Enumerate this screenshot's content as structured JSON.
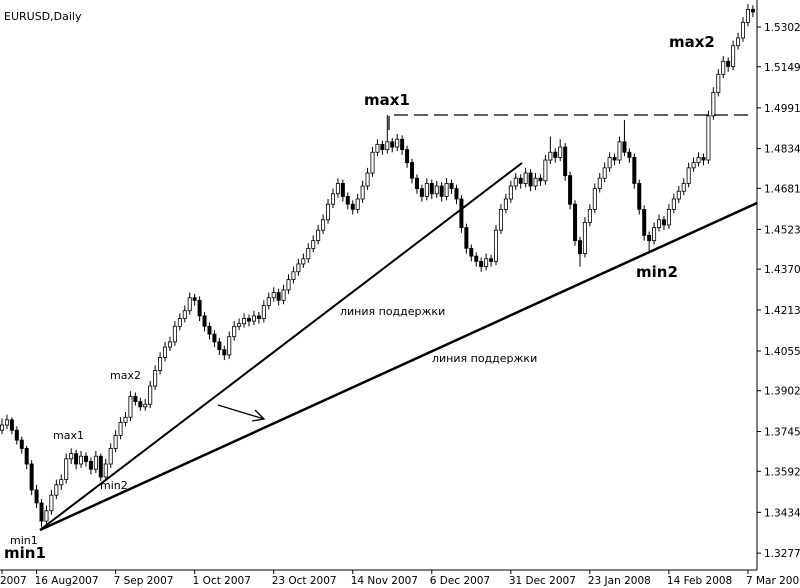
{
  "chart_data": {
    "type": "candlestick",
    "title": "EURUSD,Daily",
    "categories": [
      "2007",
      null,
      null,
      null,
      null,
      null,
      null,
      "16 Aug2007",
      null,
      null,
      null,
      null,
      null,
      null,
      null,
      null,
      null,
      null,
      null,
      null,
      null,
      null,
      null,
      "7 Sep 2007",
      null,
      null,
      null,
      null,
      null,
      null,
      null,
      null,
      null,
      null,
      null,
      null,
      null,
      null,
      null,
      "1 Oct 2007",
      null,
      null,
      null,
      null,
      null,
      null,
      null,
      null,
      null,
      null,
      null,
      null,
      null,
      null,
      null,
      "23 Oct 2007",
      null,
      null,
      null,
      null,
      null,
      null,
      null,
      null,
      null,
      null,
      null,
      null,
      null,
      null,
      null,
      "14 Nov 2007",
      null,
      null,
      null,
      null,
      null,
      null,
      null,
      null,
      null,
      null,
      null,
      null,
      null,
      null,
      null,
      "6 Dec 2007",
      null,
      null,
      null,
      null,
      null,
      null,
      null,
      null,
      null,
      null,
      null,
      null,
      null,
      null,
      null,
      "31 Dec 2007",
      null,
      null,
      null,
      null,
      null,
      null,
      null,
      null,
      null,
      null,
      null,
      null,
      null,
      null,
      null,
      "23 Jan 2008",
      null,
      null,
      null,
      null,
      null,
      null,
      null,
      null,
      null,
      null,
      null,
      null,
      null,
      null,
      null,
      "14 Feb 2008",
      null,
      null,
      null,
      null,
      null,
      null,
      null,
      null,
      null,
      null,
      null,
      null,
      null,
      null,
      null,
      "7 Mar 200",
      null
    ],
    "candles": [
      [
        1.375,
        1.3795,
        1.3735,
        1.377
      ],
      [
        1.377,
        1.381,
        1.3755,
        1.379
      ],
      [
        1.379,
        1.38,
        1.3735,
        1.375
      ],
      [
        1.375,
        1.3765,
        1.3695,
        1.3712
      ],
      [
        1.3712,
        1.3725,
        1.366,
        1.368
      ],
      [
        1.368,
        1.369,
        1.36,
        1.362
      ],
      [
        1.362,
        1.3635,
        1.35,
        1.352
      ],
      [
        1.352,
        1.354,
        1.345,
        1.347
      ],
      [
        1.347,
        1.3485,
        1.3377,
        1.34
      ],
      [
        1.34,
        1.346,
        1.3385,
        1.344
      ],
      [
        1.344,
        1.352,
        1.3425,
        1.35
      ],
      [
        1.35,
        1.356,
        1.3485,
        1.354
      ],
      [
        1.354,
        1.358,
        1.352,
        1.356
      ],
      [
        1.356,
        1.366,
        1.3545,
        1.364
      ],
      [
        1.364,
        1.368,
        1.362,
        1.366
      ],
      [
        1.366,
        1.3675,
        1.36,
        1.362
      ],
      [
        1.362,
        1.367,
        1.3605,
        1.365
      ],
      [
        1.365,
        1.3665,
        1.361,
        1.363
      ],
      [
        1.363,
        1.3645,
        1.358,
        1.36
      ],
      [
        1.36,
        1.367,
        1.3585,
        1.365
      ],
      [
        1.365,
        1.366,
        1.3555,
        1.357
      ],
      [
        1.357,
        1.364,
        1.3555,
        1.362
      ],
      [
        1.362,
        1.37,
        1.3605,
        1.368
      ],
      [
        1.368,
        1.375,
        1.3665,
        1.373
      ],
      [
        1.373,
        1.38,
        1.3715,
        1.378
      ],
      [
        1.378,
        1.382,
        1.3765,
        1.38
      ],
      [
        1.38,
        1.39,
        1.3785,
        1.388
      ],
      [
        1.388,
        1.3895,
        1.3845,
        1.386
      ],
      [
        1.386,
        1.3875,
        1.3825,
        1.384
      ],
      [
        1.384,
        1.387,
        1.3825,
        1.385
      ],
      [
        1.385,
        1.394,
        1.3835,
        1.392
      ],
      [
        1.392,
        1.4,
        1.3905,
        1.398
      ],
      [
        1.398,
        1.405,
        1.3965,
        1.403
      ],
      [
        1.403,
        1.409,
        1.4015,
        1.407
      ],
      [
        1.407,
        1.411,
        1.4055,
        1.409
      ],
      [
        1.409,
        1.417,
        1.4075,
        1.415
      ],
      [
        1.415,
        1.42,
        1.4135,
        1.418
      ],
      [
        1.418,
        1.423,
        1.4165,
        1.421
      ],
      [
        1.421,
        1.428,
        1.4195,
        1.426
      ],
      [
        1.426,
        1.4275,
        1.423,
        1.425
      ],
      [
        1.425,
        1.4265,
        1.417,
        1.419
      ],
      [
        1.419,
        1.4205,
        1.413,
        1.415
      ],
      [
        1.415,
        1.4165,
        1.41,
        1.412
      ],
      [
        1.412,
        1.4135,
        1.407,
        1.409
      ],
      [
        1.409,
        1.4105,
        1.404,
        1.406
      ],
      [
        1.406,
        1.4075,
        1.402,
        1.404
      ],
      [
        1.404,
        1.413,
        1.4025,
        1.411
      ],
      [
        1.411,
        1.417,
        1.4095,
        1.415
      ],
      [
        1.415,
        1.418,
        1.4135,
        1.416
      ],
      [
        1.416,
        1.42,
        1.4145,
        1.418
      ],
      [
        1.418,
        1.4195,
        1.415,
        1.417
      ],
      [
        1.417,
        1.421,
        1.4155,
        1.419
      ],
      [
        1.419,
        1.4205,
        1.416,
        1.418
      ],
      [
        1.418,
        1.425,
        1.4165,
        1.423
      ],
      [
        1.423,
        1.428,
        1.4215,
        1.426
      ],
      [
        1.426,
        1.43,
        1.4245,
        1.428
      ],
      [
        1.428,
        1.4295,
        1.423,
        1.425
      ],
      [
        1.425,
        1.431,
        1.4235,
        1.429
      ],
      [
        1.429,
        1.435,
        1.4275,
        1.433
      ],
      [
        1.433,
        1.438,
        1.4315,
        1.436
      ],
      [
        1.436,
        1.441,
        1.4345,
        1.439
      ],
      [
        1.439,
        1.443,
        1.4375,
        1.441
      ],
      [
        1.441,
        1.447,
        1.4395,
        1.445
      ],
      [
        1.445,
        1.45,
        1.4435,
        1.448
      ],
      [
        1.448,
        1.454,
        1.4465,
        1.452
      ],
      [
        1.452,
        1.458,
        1.4505,
        1.456
      ],
      [
        1.456,
        1.464,
        1.4545,
        1.462
      ],
      [
        1.462,
        1.468,
        1.4605,
        1.466
      ],
      [
        1.466,
        1.472,
        1.4645,
        1.47
      ],
      [
        1.47,
        1.4715,
        1.463,
        1.465
      ],
      [
        1.465,
        1.4665,
        1.46,
        1.462
      ],
      [
        1.462,
        1.4635,
        1.458,
        1.46
      ],
      [
        1.46,
        1.466,
        1.4585,
        1.464
      ],
      [
        1.464,
        1.471,
        1.4625,
        1.469
      ],
      [
        1.469,
        1.476,
        1.4675,
        1.474
      ],
      [
        1.474,
        1.484,
        1.4725,
        1.482
      ],
      [
        1.482,
        1.487,
        1.4805,
        1.485
      ],
      [
        1.485,
        1.4865,
        1.481,
        1.483
      ],
      [
        1.483,
        1.4963,
        1.4815,
        1.486
      ],
      [
        1.486,
        1.4875,
        1.482,
        1.484
      ],
      [
        1.484,
        1.489,
        1.4825,
        1.487
      ],
      [
        1.487,
        1.4885,
        1.481,
        1.483
      ],
      [
        1.483,
        1.4845,
        1.476,
        1.478
      ],
      [
        1.478,
        1.4795,
        1.47,
        1.472
      ],
      [
        1.472,
        1.4735,
        1.466,
        1.468
      ],
      [
        1.468,
        1.4695,
        1.463,
        1.465
      ],
      [
        1.465,
        1.472,
        1.4635,
        1.47
      ],
      [
        1.47,
        1.4715,
        1.464,
        1.466
      ],
      [
        1.466,
        1.471,
        1.4645,
        1.469
      ],
      [
        1.469,
        1.4705,
        1.463,
        1.465
      ],
      [
        1.465,
        1.472,
        1.4635,
        1.47
      ],
      [
        1.47,
        1.4715,
        1.466,
        1.468
      ],
      [
        1.468,
        1.4695,
        1.462,
        1.464
      ],
      [
        1.464,
        1.4655,
        1.451,
        1.453
      ],
      [
        1.453,
        1.4545,
        1.443,
        1.445
      ],
      [
        1.445,
        1.4465,
        1.44,
        1.442
      ],
      [
        1.442,
        1.4435,
        1.438,
        1.44
      ],
      [
        1.44,
        1.4415,
        1.436,
        1.438
      ],
      [
        1.438,
        1.443,
        1.4365,
        1.441
      ],
      [
        1.441,
        1.4425,
        1.438,
        1.44
      ],
      [
        1.44,
        1.454,
        1.4385,
        1.452
      ],
      [
        1.452,
        1.462,
        1.4505,
        1.46
      ],
      [
        1.46,
        1.466,
        1.4585,
        1.464
      ],
      [
        1.464,
        1.471,
        1.4625,
        1.469
      ],
      [
        1.469,
        1.474,
        1.4675,
        1.472
      ],
      [
        1.472,
        1.4735,
        1.468,
        1.47
      ],
      [
        1.47,
        1.476,
        1.4685,
        1.474
      ],
      [
        1.474,
        1.4755,
        1.467,
        1.469
      ],
      [
        1.469,
        1.474,
        1.4675,
        1.472
      ],
      [
        1.472,
        1.4735,
        1.469,
        1.471
      ],
      [
        1.471,
        1.481,
        1.4695,
        1.479
      ],
      [
        1.479,
        1.488,
        1.4775,
        1.482
      ],
      [
        1.482,
        1.4835,
        1.478,
        1.48
      ],
      [
        1.48,
        1.487,
        1.4785,
        1.484
      ],
      [
        1.484,
        1.4855,
        1.471,
        1.473
      ],
      [
        1.473,
        1.4745,
        1.46,
        1.462
      ],
      [
        1.462,
        1.4635,
        1.446,
        1.448
      ],
      [
        1.448,
        1.4495,
        1.438,
        1.443
      ],
      [
        1.443,
        1.457,
        1.4415,
        1.455
      ],
      [
        1.455,
        1.462,
        1.4535,
        1.46
      ],
      [
        1.46,
        1.47,
        1.4585,
        1.468
      ],
      [
        1.468,
        1.474,
        1.4665,
        1.472
      ],
      [
        1.472,
        1.478,
        1.4705,
        1.476
      ],
      [
        1.476,
        1.482,
        1.4745,
        1.48
      ],
      [
        1.48,
        1.4815,
        1.477,
        1.479
      ],
      [
        1.479,
        1.488,
        1.4775,
        1.486
      ],
      [
        1.486,
        1.4944,
        1.4805,
        1.482
      ],
      [
        1.482,
        1.4835,
        1.478,
        1.48
      ],
      [
        1.48,
        1.4815,
        1.468,
        1.47
      ],
      [
        1.47,
        1.4715,
        1.458,
        1.46
      ],
      [
        1.46,
        1.4615,
        1.448,
        1.45
      ],
      [
        1.45,
        1.4515,
        1.443,
        1.448
      ],
      [
        1.448,
        1.455,
        1.4465,
        1.453
      ],
      [
        1.453,
        1.458,
        1.4515,
        1.456
      ],
      [
        1.456,
        1.4575,
        1.452,
        1.454
      ],
      [
        1.454,
        1.462,
        1.4525,
        1.46
      ],
      [
        1.46,
        1.466,
        1.4585,
        1.464
      ],
      [
        1.464,
        1.469,
        1.4625,
        1.467
      ],
      [
        1.467,
        1.472,
        1.4655,
        1.47
      ],
      [
        1.47,
        1.478,
        1.4685,
        1.476
      ],
      [
        1.476,
        1.48,
        1.4745,
        1.478
      ],
      [
        1.478,
        1.482,
        1.4765,
        1.48
      ],
      [
        1.48,
        1.4815,
        1.477,
        1.479
      ],
      [
        1.479,
        1.498,
        1.4775,
        1.496
      ],
      [
        1.496,
        1.507,
        1.4945,
        1.505
      ],
      [
        1.505,
        1.514,
        1.5035,
        1.512
      ],
      [
        1.512,
        1.519,
        1.5105,
        1.517
      ],
      [
        1.517,
        1.5185,
        1.513,
        1.515
      ],
      [
        1.515,
        1.525,
        1.5135,
        1.523
      ],
      [
        1.523,
        1.528,
        1.5215,
        1.526
      ],
      [
        1.526,
        1.534,
        1.5245,
        1.532
      ],
      [
        1.532,
        1.539,
        1.5305,
        1.537
      ],
      [
        1.537,
        1.5385,
        1.534,
        1.536
      ]
    ],
    "ylim": [
      1.3212,
      1.5406
    ],
    "yticks": [
      1.5302,
      1.5149,
      1.4991,
      1.4834,
      1.4681,
      1.4523,
      {
        "value": 1.437,
        "label": "1.4370"
      },
      1.4213,
      1.4055,
      1.3902,
      1.3745,
      1.3592,
      1.3434,
      1.3277
    ],
    "bull_color": "#ffffff",
    "bear_color": "#000000",
    "annotations": [
      "max1",
      "max2",
      "min1",
      "min1",
      "min2",
      "min2",
      "max1",
      "max2",
      "линия поддержки",
      "линия поддержки"
    ]
  }
}
